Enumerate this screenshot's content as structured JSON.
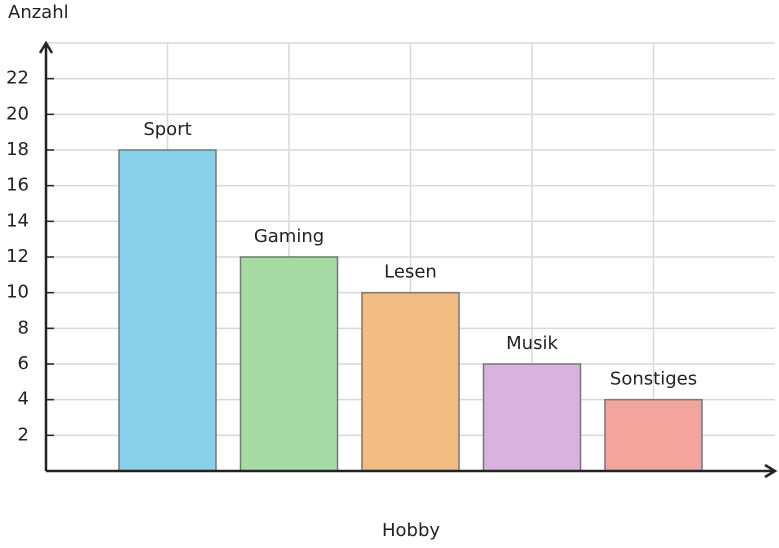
{
  "chart_data": {
    "type": "bar",
    "x_label": "Hobby",
    "y_label": "Anzahl",
    "categories": [
      "Sport",
      "Gaming",
      "Lesen",
      "Musik",
      "Sonstiges"
    ],
    "values": [
      18,
      12,
      10,
      6,
      4
    ],
    "colors": [
      "#86d0ea",
      "#a4dca4",
      "#f3bc83",
      "#d8b3dd",
      "#f3a49c"
    ],
    "ylim": [
      0,
      24
    ],
    "yticks": [
      2,
      4,
      6,
      8,
      10,
      12,
      14,
      16,
      18,
      20,
      22
    ],
    "grid": true
  }
}
